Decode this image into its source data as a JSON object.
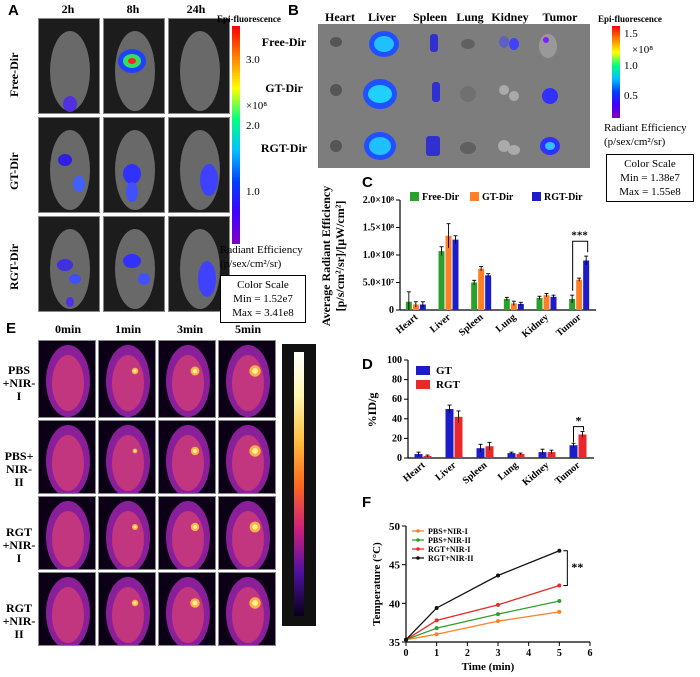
{
  "panelA": {
    "label": "A",
    "times": [
      "2h",
      "8h",
      "24h"
    ],
    "rows": [
      "Free-Dir",
      "GT-Dir",
      "RGT-Dir"
    ],
    "scale_title": "Epi-fluorescence",
    "ticks": [
      "3.0",
      "2.0",
      "1.0"
    ],
    "exp": "×10⁸",
    "radiant_l1": "Radiant Efficiency",
    "radiant_l2": "(p/sex/cm²/sr)",
    "color_scale": "Color Scale",
    "min": "Min = 1.52e7",
    "max": "Max = 3.41e8"
  },
  "panelB": {
    "label": "B",
    "organs": [
      "Heart",
      "Liver",
      "Spleen",
      "Lung",
      "Kidney",
      "Tumor"
    ],
    "rows": [
      "Free-Dir",
      "GT-Dir",
      "RGT-Dir"
    ],
    "scale_title": "Epi-fluorescence",
    "ticks": [
      "1.5",
      "1.0",
      "0.5"
    ],
    "exp": "×10⁸",
    "radiant_l1": "Radiant Efficiency",
    "radiant_l2": "(p/sex/cm²/sr)",
    "color_scale": "Color Scale",
    "min": "Min = 1.38e7",
    "max": "Max = 1.55e8"
  },
  "panelC": {
    "label": "C",
    "ylabel_l1": "Average Radiant Efficiency",
    "ylabel_l2": "[p/s/cm²/sr]/[μW/cm²]",
    "sig": "***"
  },
  "panelD": {
    "label": "D",
    "sig": "*"
  },
  "panelE": {
    "label": "E",
    "times": [
      "0min",
      "1min",
      "3min",
      "5min"
    ],
    "rows": [
      [
        "PBS",
        "+NIR-I"
      ],
      [
        "PBS+",
        "NIR-II"
      ],
      [
        "RGT",
        "+NIR-I"
      ],
      [
        "RGT",
        "+NIR-II"
      ]
    ]
  },
  "panelF": {
    "label": "F",
    "sig": "**"
  },
  "chart_data": [
    {
      "id": "C",
      "type": "bar",
      "categories": [
        "Heart",
        "Liver",
        "Spleen",
        "Lung",
        "Kidney",
        "Tumor"
      ],
      "series": [
        {
          "name": "Free-Dir",
          "color": "#2ca02c",
          "values": [
            15000000.0,
            107000000.0,
            50000000.0,
            20000000.0,
            22000000.0,
            20000000.0
          ],
          "errors": [
            18000000.0,
            8000000.0,
            4000000.0,
            3000000.0,
            3000000.0,
            7000000.0
          ]
        },
        {
          "name": "GT-Dir",
          "color": "#ff7f27",
          "values": [
            10000000.0,
            135000000.0,
            75000000.0,
            12000000.0,
            27000000.0,
            55000000.0
          ],
          "errors": [
            5000000.0,
            22000000.0,
            4000000.0,
            4000000.0,
            3000000.0,
            3000000.0
          ]
        },
        {
          "name": "RGT-Dir",
          "color": "#1c1cc8",
          "values": [
            10000000.0,
            128000000.0,
            63000000.0,
            11000000.0,
            24000000.0,
            90000000.0
          ],
          "errors": [
            5000000.0,
            7000000.0,
            3000000.0,
            3000000.0,
            3000000.0,
            8000000.0
          ]
        }
      ],
      "yticks": [
        "0",
        "5.0×10⁷",
        "1.0×10⁸",
        "1.5×10⁸",
        "2.0×10⁸"
      ],
      "ylim": [
        0,
        200000000.0
      ],
      "legend": "top"
    },
    {
      "id": "D",
      "type": "bar",
      "categories": [
        "Heart",
        "Liver",
        "Spleen",
        "Lung",
        "Kidney",
        "Tumor"
      ],
      "series": [
        {
          "name": "GT",
          "color": "#1c1cc8",
          "values": [
            4,
            50,
            10,
            5,
            6,
            13
          ],
          "errors": [
            2,
            4,
            4,
            1,
            3,
            2
          ]
        },
        {
          "name": "RGT",
          "color": "#e8282a",
          "values": [
            2,
            42,
            12,
            4,
            6,
            24
          ],
          "errors": [
            1,
            6,
            4,
            1,
            2,
            3
          ]
        }
      ],
      "ylabel": "%ID/g",
      "yticks": [
        "0",
        "20",
        "40",
        "60",
        "80",
        "100"
      ],
      "ylim": [
        0,
        100
      ],
      "legend": "top-left"
    },
    {
      "id": "F",
      "type": "line",
      "x": [
        0,
        1,
        3,
        5
      ],
      "series": [
        {
          "name": "PBS+NIR-I",
          "color": "#ff7f27",
          "values": [
            35.3,
            36.0,
            37.7,
            38.9
          ]
        },
        {
          "name": "PBS+NIR-II",
          "color": "#2ca02c",
          "values": [
            35.3,
            36.8,
            38.6,
            40.3
          ]
        },
        {
          "name": "RGT+NIR-I",
          "color": "#e8282a",
          "values": [
            35.3,
            37.8,
            39.8,
            42.3
          ]
        },
        {
          "name": "RGT+NIR-II",
          "color": "#111111",
          "values": [
            35.3,
            39.4,
            43.6,
            46.8
          ]
        }
      ],
      "xlabel": "Time (min)",
      "ylabel": "Temperature (°C)",
      "xticks": [
        "0",
        "1",
        "2",
        "3",
        "4",
        "5",
        "6"
      ],
      "yticks": [
        "35",
        "40",
        "45",
        "50"
      ],
      "xlim": [
        0,
        6
      ],
      "ylim": [
        35,
        50
      ],
      "legend": "top-left"
    }
  ]
}
